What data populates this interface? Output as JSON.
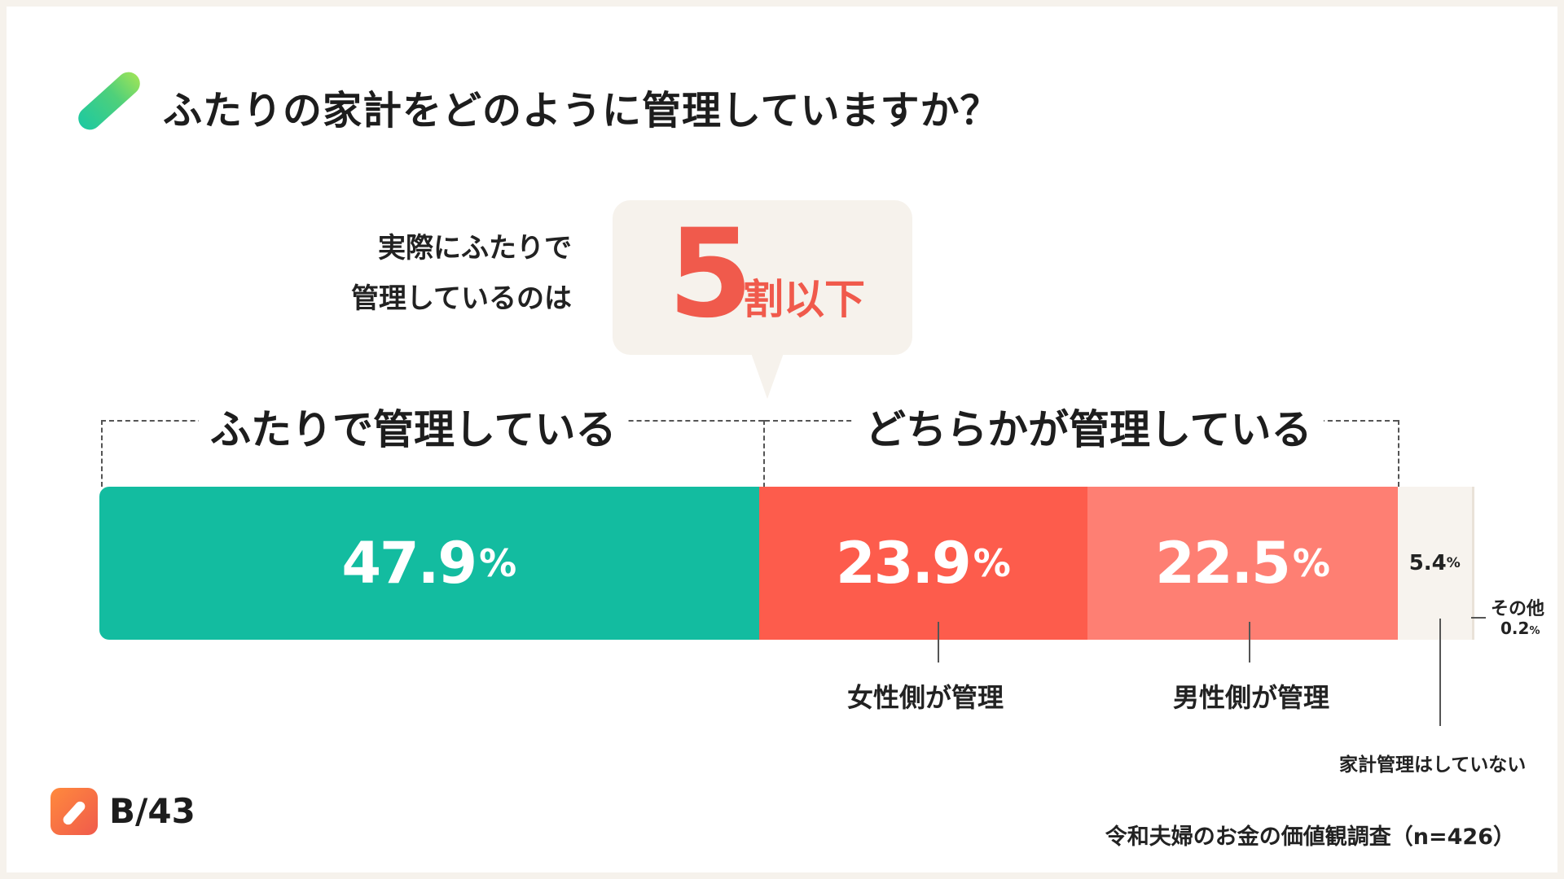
{
  "title": "ふたりの家計をどのように管理していますか？",
  "callout": {
    "line1": "実際にふたりで",
    "line2": "管理しているのは",
    "number": "5",
    "unit": "割以下"
  },
  "groups": {
    "left": "ふたりで管理している",
    "right": "どちらかが管理している"
  },
  "chart_data": {
    "type": "bar",
    "orientation": "horizontal-stacked",
    "title": "ふたりの家計をどのように管理していますか？",
    "unit": "%",
    "categories": [
      "ふたりで管理している",
      "女性側が管理",
      "男性側が管理",
      "家計管理はしていない",
      "その他"
    ],
    "values": [
      47.9,
      23.9,
      22.5,
      5.4,
      0.2
    ],
    "labels": [
      "47.9",
      "23.9",
      "22.5",
      "5.4",
      "0.2"
    ],
    "colors": [
      "#13bca0",
      "#fd5c4c",
      "#fe7f73",
      "#f7f3ee",
      "#e9e2d8"
    ]
  },
  "segment_labels": {
    "female": "女性側が管理",
    "male": "男性側が管理",
    "none": "家計管理はしていない",
    "other": "その他"
  },
  "percent_sign": "%",
  "brand": "B/43",
  "source": "令和夫婦のお金の価値観調査（n=426）"
}
